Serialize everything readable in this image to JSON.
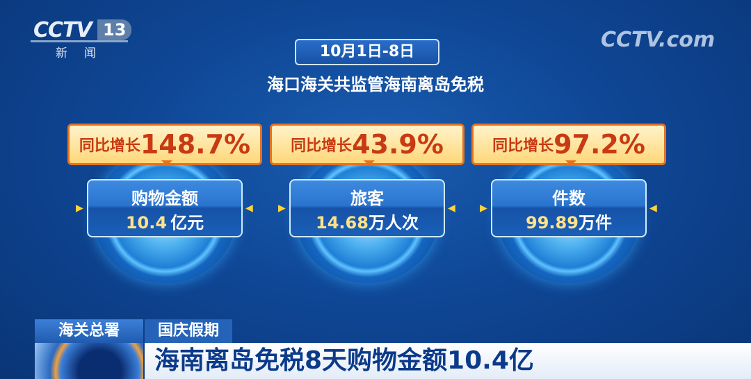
{
  "channel": {
    "logo": "CCTV",
    "number": "13",
    "name": "新闻",
    "watermark": "CCTV.com"
  },
  "header": {
    "date": "10月1日-8日",
    "subtitle": "海口海关共监管海南离岛免税"
  },
  "cards": [
    {
      "growth_label": "同比增长",
      "growth_value": "148.7%",
      "label": "购物金额",
      "value": "10.4",
      "unit": "亿元"
    },
    {
      "growth_label": "同比增长",
      "growth_value": "43.9%",
      "label": "旅客",
      "value": "14.68",
      "unit": "万人次"
    },
    {
      "growth_label": "同比增长",
      "growth_value": "97.2%",
      "label": "件数",
      "value": "99.89",
      "unit": "万件"
    }
  ],
  "lower_third": {
    "source": "海关总署",
    "topic": "国庆假期",
    "headline": "海南离岛免税8天购物金额10.4亿"
  },
  "colors": {
    "background": "#0f4796",
    "badge_border": "#e6721e",
    "badge_text": "#c83a12",
    "value_text": "#ffe28a"
  }
}
